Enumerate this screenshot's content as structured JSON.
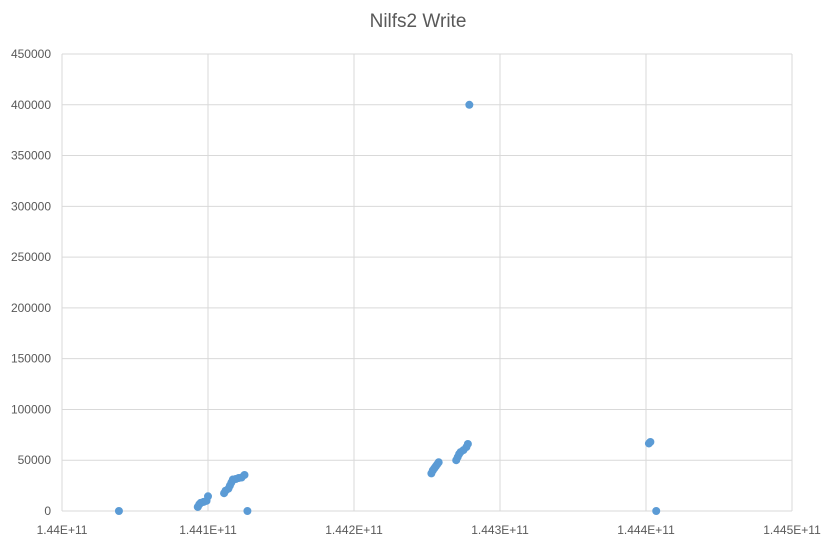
{
  "chart_data": {
    "type": "scatter",
    "title": "Nilfs2 Write",
    "xlabel": "",
    "ylabel": "",
    "xlim": [
      144000000000,
      144500000000
    ],
    "ylim": [
      0,
      450000
    ],
    "x_ticks": [
      144000000000,
      144100000000,
      144200000000,
      144300000000,
      144400000000,
      144500000000
    ],
    "x_tick_labels": [
      "1.44E+11",
      "1.441E+11",
      "1.442E+11",
      "1.443E+11",
      "1.444E+11",
      "1.445E+11"
    ],
    "y_ticks": [
      0,
      50000,
      100000,
      150000,
      200000,
      250000,
      300000,
      350000,
      400000,
      450000
    ],
    "y_tick_labels": [
      "0",
      "50000",
      "100000",
      "150000",
      "200000",
      "250000",
      "300000",
      "350000",
      "400000",
      "450000"
    ],
    "grid": true,
    "legend": "none",
    "marker_color": "#5b9bd5",
    "series": [
      {
        "points": [
          {
            "x": 144039000000,
            "y": 0
          },
          {
            "x": 144093000000,
            "y": 4000
          },
          {
            "x": 144094000000,
            "y": 6500
          },
          {
            "x": 144095000000,
            "y": 8000
          },
          {
            "x": 144097000000,
            "y": 9000
          },
          {
            "x": 144099000000,
            "y": 10000
          },
          {
            "x": 144100000000,
            "y": 14500
          },
          {
            "x": 144111000000,
            "y": 17500
          },
          {
            "x": 144112000000,
            "y": 20000
          },
          {
            "x": 144114000000,
            "y": 22000
          },
          {
            "x": 144115000000,
            "y": 25000
          },
          {
            "x": 144116000000,
            "y": 28000
          },
          {
            "x": 144117000000,
            "y": 31000
          },
          {
            "x": 144119000000,
            "y": 31500
          },
          {
            "x": 144121000000,
            "y": 32500
          },
          {
            "x": 144123000000,
            "y": 33000
          },
          {
            "x": 144125000000,
            "y": 35500
          },
          {
            "x": 144127000000,
            "y": 0
          },
          {
            "x": 144253000000,
            "y": 37000
          },
          {
            "x": 144254000000,
            "y": 40000
          },
          {
            "x": 144255000000,
            "y": 42000
          },
          {
            "x": 144256000000,
            "y": 44000
          },
          {
            "x": 144257000000,
            "y": 46000
          },
          {
            "x": 144258000000,
            "y": 48000
          },
          {
            "x": 144270000000,
            "y": 50000
          },
          {
            "x": 144271000000,
            "y": 53000
          },
          {
            "x": 144272000000,
            "y": 56000
          },
          {
            "x": 144273000000,
            "y": 58000
          },
          {
            "x": 144275000000,
            "y": 60000
          },
          {
            "x": 144277000000,
            "y": 63000
          },
          {
            "x": 144278000000,
            "y": 66000
          },
          {
            "x": 144279000000,
            "y": 400000
          },
          {
            "x": 144402000000,
            "y": 66500
          },
          {
            "x": 144403000000,
            "y": 68000
          },
          {
            "x": 144407000000,
            "y": 0
          }
        ]
      }
    ]
  }
}
